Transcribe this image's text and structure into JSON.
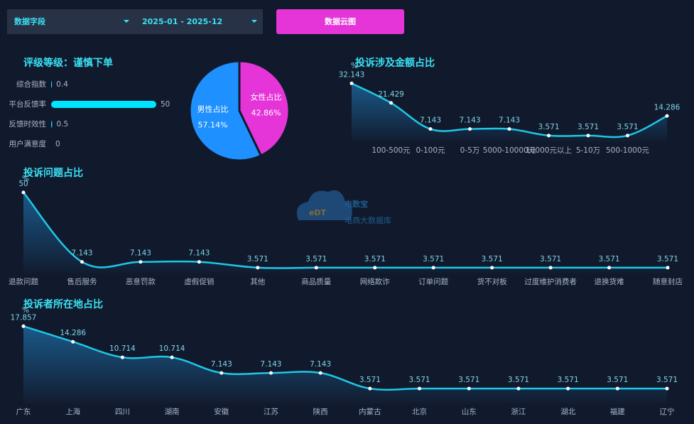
{
  "controls": {
    "field_select": "数据字段",
    "date_range": "2025-01 - 2025-12",
    "button": "数据云图"
  },
  "watermark": {
    "logo": "eDT",
    "name": "电数宝",
    "subtitle": "电商大数据库"
  },
  "chart_data": [
    {
      "type": "bar",
      "title": "评级等级：谨慎下单",
      "orientation": "horizontal",
      "color": "#00e5ff",
      "categories": [
        "综合指数",
        "平台反馈率",
        "反馈时效性",
        "用户满意度"
      ],
      "values": [
        0.4,
        50,
        0.5,
        0
      ],
      "xlim": [
        0,
        50
      ]
    },
    {
      "type": "pie",
      "categories": [
        "男性占比",
        "女性占比"
      ],
      "values": [
        57.14,
        42.86
      ],
      "value_labels": [
        "57.14%",
        "42.86%"
      ],
      "colors": [
        "#1e90ff",
        "#e535d8"
      ]
    },
    {
      "type": "line",
      "title": "投诉涉及金额占比",
      "y_label": "%",
      "color": "#1ec8e6",
      "categories": [
        null,
        "100-500元",
        "0-100元",
        "0-5万",
        "5000-10000元",
        "10000元以上",
        "5-10万",
        "500-1000元",
        null
      ],
      "values": [
        32.143,
        21.429,
        7.143,
        7.143,
        7.143,
        3.571,
        3.571,
        3.571,
        14.286
      ],
      "ylim": [
        0,
        35
      ]
    },
    {
      "type": "line",
      "title": "投诉问题占比",
      "y_label": "%",
      "color": "#1ec8e6",
      "categories": [
        "退款问题",
        "售后服务",
        "恶意罚款",
        "虚假促销",
        "其他",
        "商品质量",
        "网络欺诈",
        "订单问题",
        "货不对板",
        "过度维护消费者",
        "退换货难",
        "随意封店"
      ],
      "values": [
        50,
        7.143,
        7.143,
        7.143,
        3.571,
        3.571,
        3.571,
        3.571,
        3.571,
        3.571,
        3.571,
        3.571
      ],
      "ylim": [
        0,
        57
      ]
    },
    {
      "type": "line",
      "title": "投诉者所在地占比",
      "y_label": "%",
      "color": "#1ec8e6",
      "categories": [
        "广东",
        "上海",
        "四川",
        "湖南",
        "安徽",
        "江苏",
        "陕西",
        "内蒙古",
        "北京",
        "山东",
        "浙江",
        "湖北",
        "福建",
        "辽宁"
      ],
      "values": [
        17.857,
        14.286,
        10.714,
        10.714,
        7.143,
        7.143,
        7.143,
        3.571,
        3.571,
        3.571,
        3.571,
        3.571,
        3.571,
        3.571
      ],
      "ylim": [
        0,
        21
      ]
    }
  ]
}
